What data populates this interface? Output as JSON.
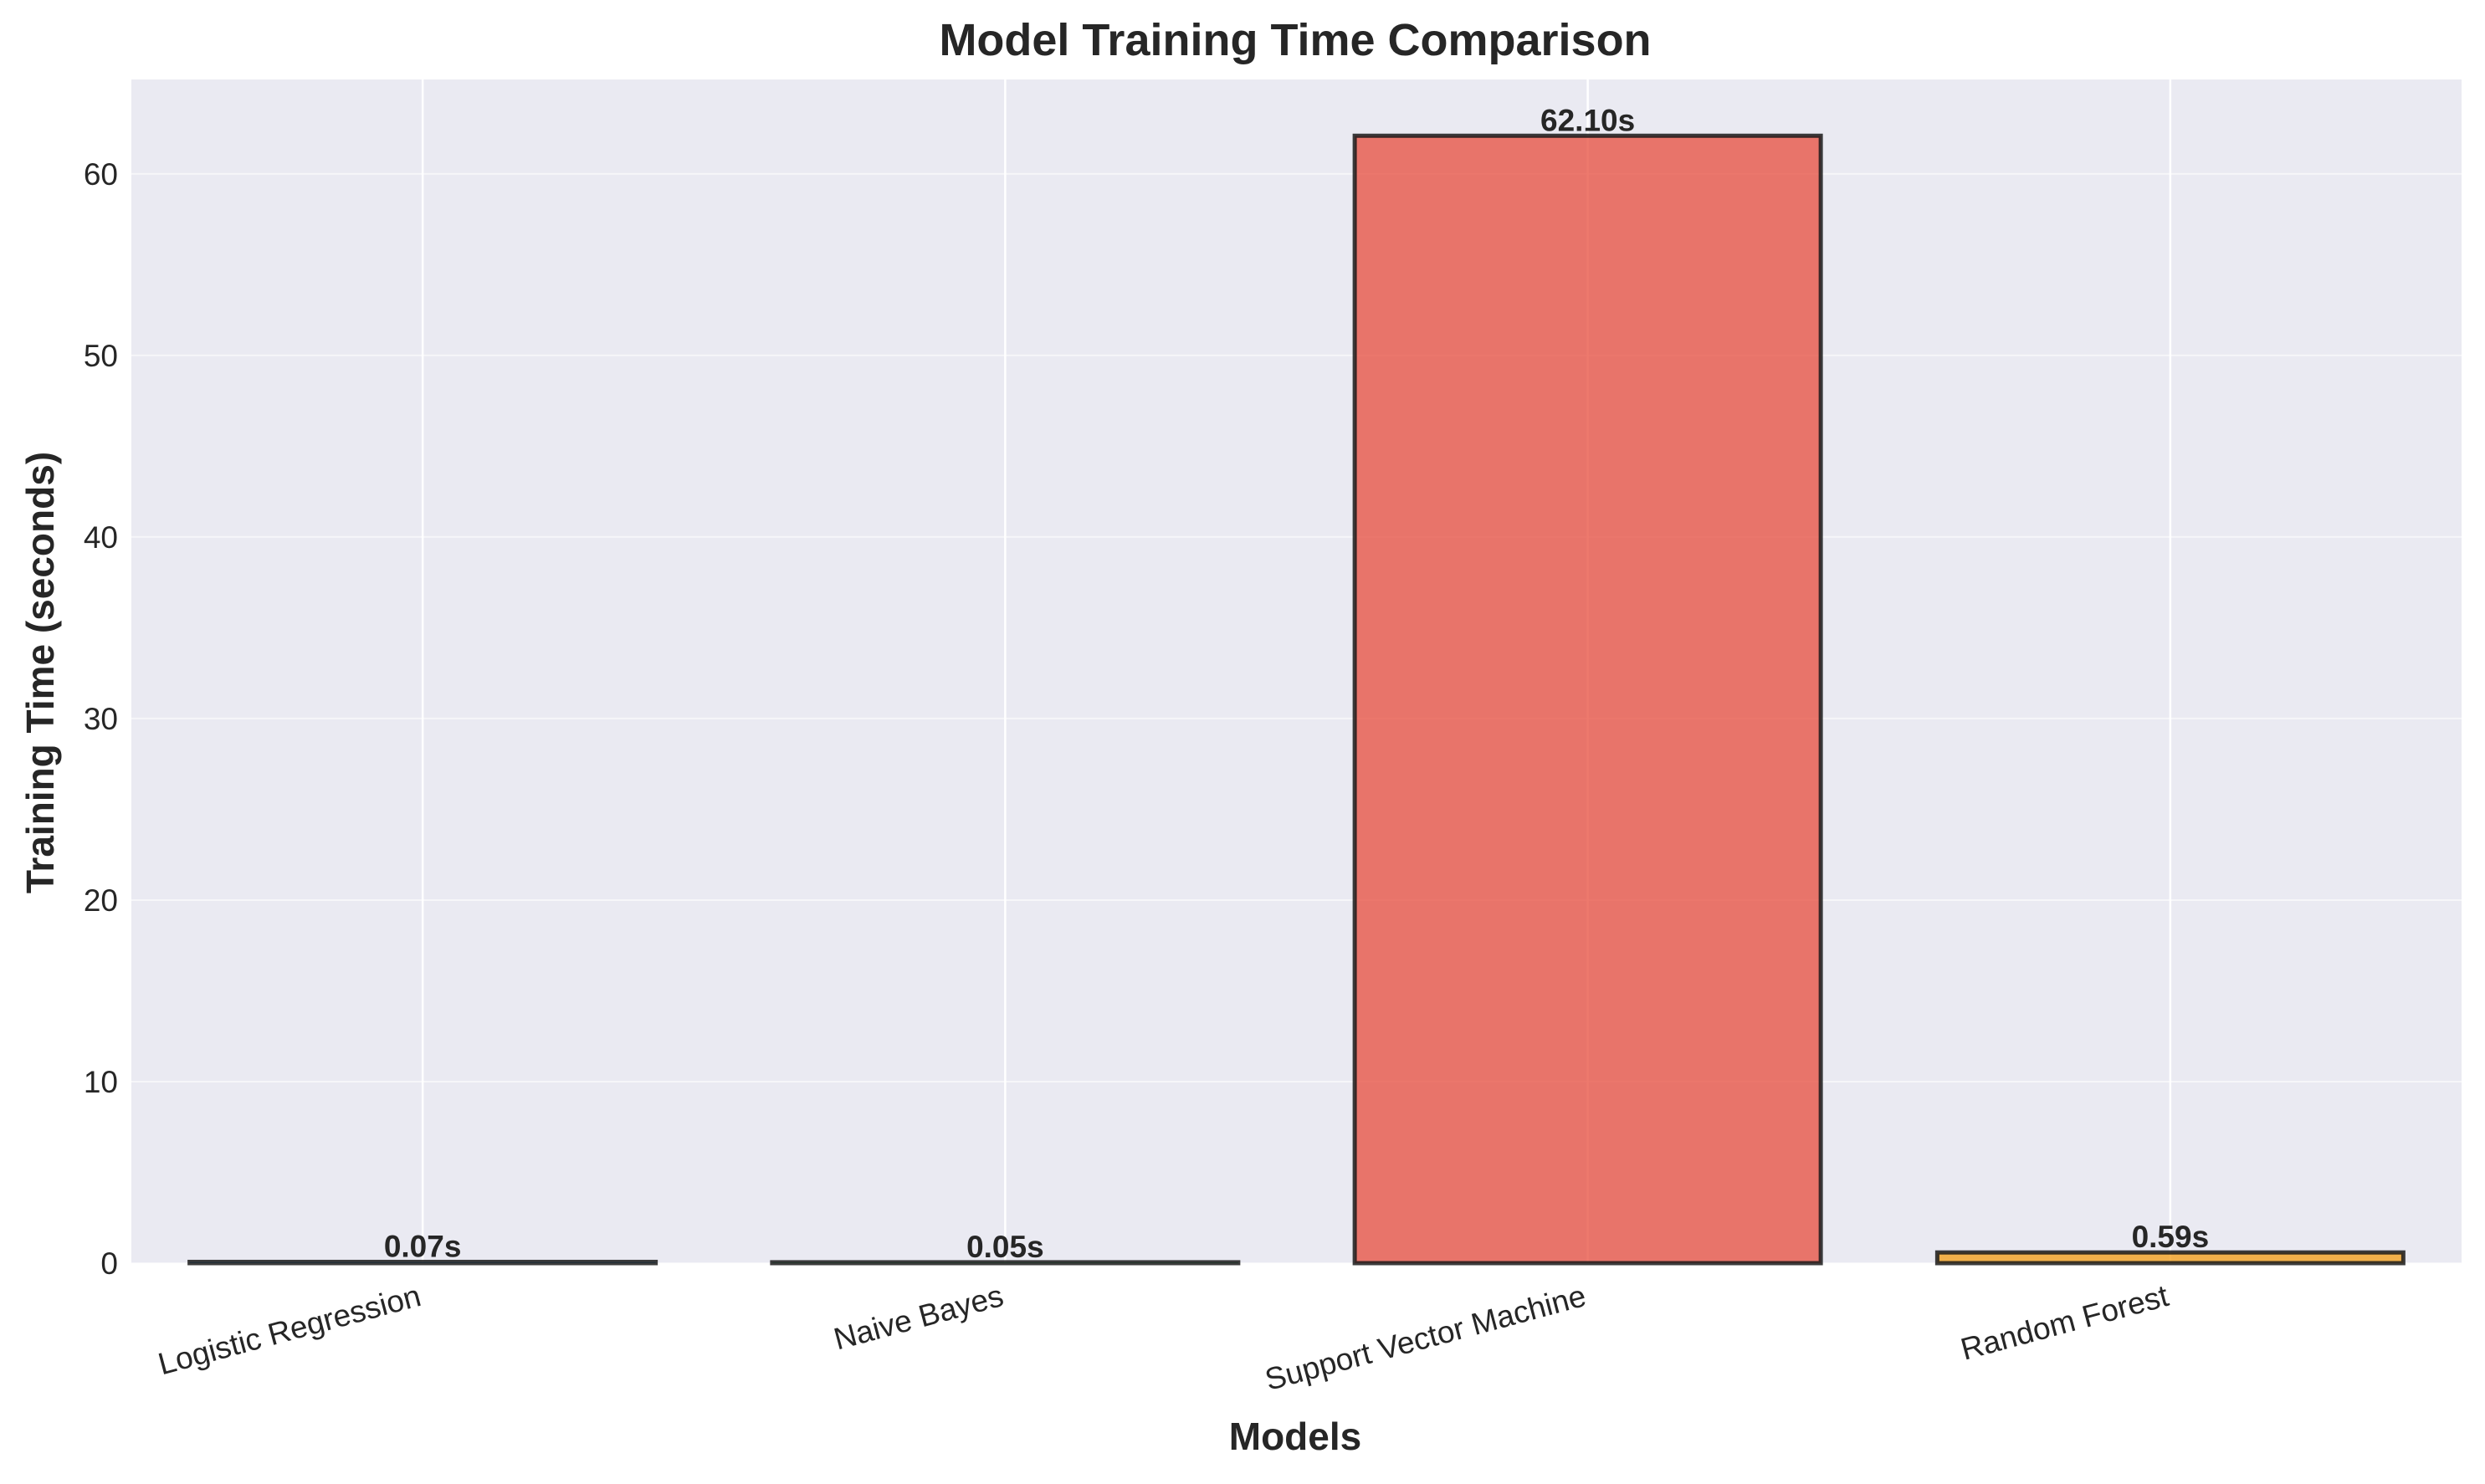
{
  "chart_data": {
    "type": "bar",
    "title": "Model Training Time Comparison",
    "xlabel": "Models",
    "ylabel": "Training Time (seconds)",
    "categories": [
      "Logistic Regression",
      "Naive Bayes",
      "Support Vector Machine",
      "Random Forest"
    ],
    "values": [
      0.07,
      0.05,
      62.1,
      0.59
    ],
    "value_labels": [
      "0.07s",
      "0.05s",
      "62.10s",
      "0.59s"
    ],
    "bar_colors": [
      "#3498db",
      "#2ecc71",
      "#e74c3c",
      "#f39c12"
    ],
    "bar_edge_color": "#1a1a1a",
    "ylim": [
      0,
      65.2
    ],
    "yticks": [
      0,
      10,
      20,
      30,
      40,
      50,
      60
    ],
    "ytick_labels": [
      "0",
      "10",
      "20",
      "30",
      "40",
      "50",
      "60"
    ],
    "grid": true,
    "background_color": "#eaeaf2",
    "grid_color": "#ffffff",
    "text_color": "#262626",
    "legend": "none"
  }
}
